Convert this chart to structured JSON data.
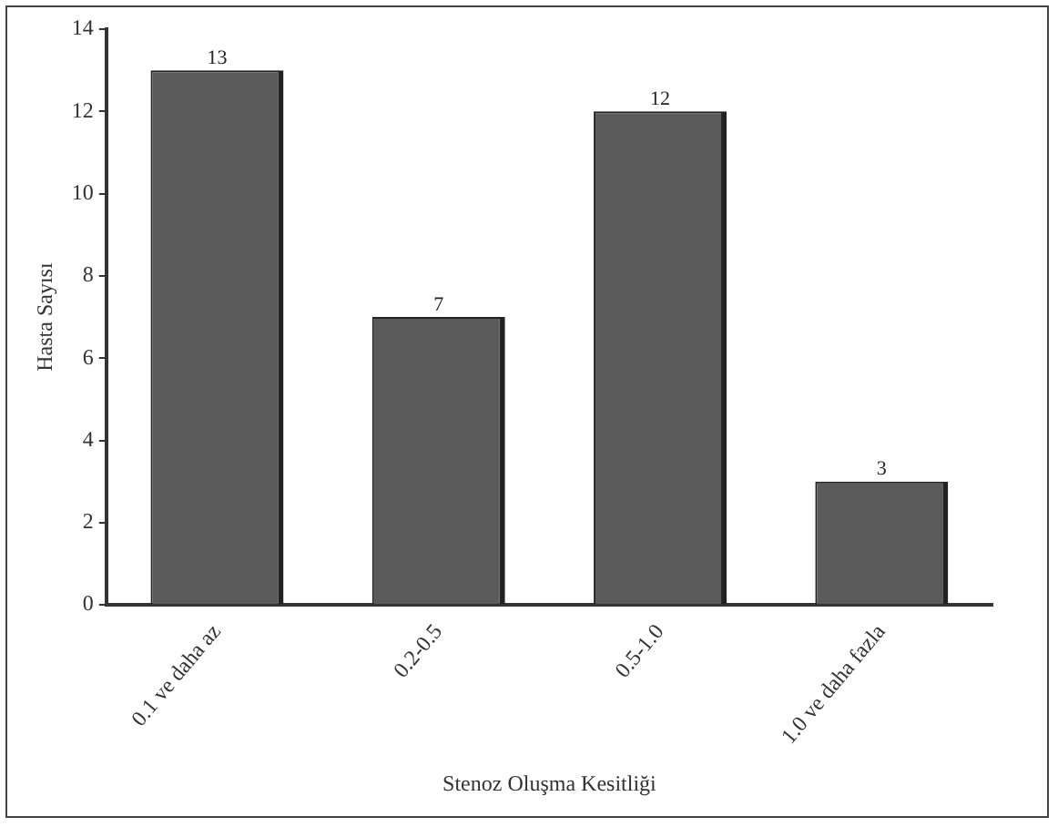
{
  "chart_data": {
    "type": "bar",
    "xlabel": "Stenoz Oluşma Kesitliği",
    "ylabel": "Hasta Sayısı",
    "categories": [
      "0.1 ve daha az",
      "0.2-0.5",
      "0.5-1.0",
      "1.0 ve daha fazla"
    ],
    "values": [
      13,
      7,
      12,
      3
    ],
    "color": "#5a5a5a",
    "data_labels": true,
    "ylim": [
      0,
      14
    ],
    "yticks": [
      0,
      2,
      4,
      6,
      8,
      10,
      12,
      14
    ],
    "grid": false,
    "legend": false
  }
}
